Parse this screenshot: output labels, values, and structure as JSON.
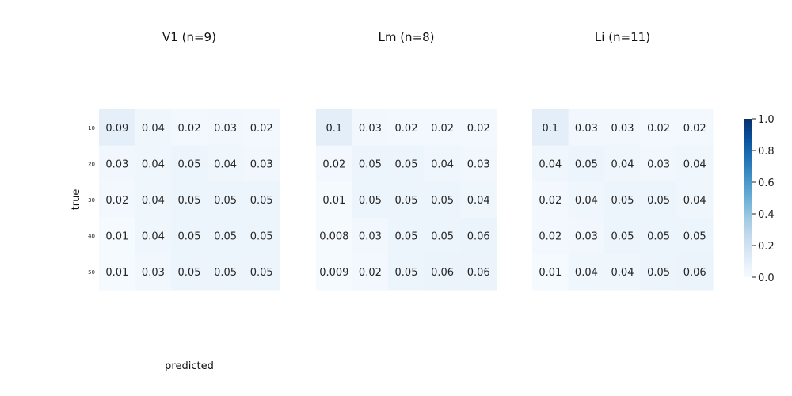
{
  "chart_data": [
    {
      "type": "heatmap",
      "title": "V1 (n=9)",
      "xlabel": "predicted",
      "ylabel": "true",
      "row_labels": [
        "10",
        "20",
        "30",
        "40",
        "50"
      ],
      "col_labels": [],
      "values": [
        [
          0.09,
          0.04,
          0.02,
          0.03,
          0.02
        ],
        [
          0.03,
          0.04,
          0.05,
          0.04,
          0.03
        ],
        [
          0.02,
          0.04,
          0.05,
          0.05,
          0.05
        ],
        [
          0.01,
          0.04,
          0.05,
          0.05,
          0.05
        ],
        [
          0.01,
          0.03,
          0.05,
          0.05,
          0.05
        ]
      ],
      "value_labels": [
        [
          "0.09",
          "0.04",
          "0.02",
          "0.03",
          "0.02"
        ],
        [
          "0.03",
          "0.04",
          "0.05",
          "0.04",
          "0.03"
        ],
        [
          "0.02",
          "0.04",
          "0.05",
          "0.05",
          "0.05"
        ],
        [
          "0.01",
          "0.04",
          "0.05",
          "0.05",
          "0.05"
        ],
        [
          "0.01",
          "0.03",
          "0.05",
          "0.05",
          "0.05"
        ]
      ]
    },
    {
      "type": "heatmap",
      "title": "Lm (n=8)",
      "xlabel": "",
      "ylabel": "",
      "row_labels": [],
      "col_labels": [],
      "values": [
        [
          0.1,
          0.03,
          0.02,
          0.02,
          0.02
        ],
        [
          0.02,
          0.05,
          0.05,
          0.04,
          0.03
        ],
        [
          0.01,
          0.05,
          0.05,
          0.05,
          0.04
        ],
        [
          0.008,
          0.03,
          0.05,
          0.05,
          0.06
        ],
        [
          0.009,
          0.02,
          0.05,
          0.06,
          0.06
        ]
      ],
      "value_labels": [
        [
          "0.1",
          "0.03",
          "0.02",
          "0.02",
          "0.02"
        ],
        [
          "0.02",
          "0.05",
          "0.05",
          "0.04",
          "0.03"
        ],
        [
          "0.01",
          "0.05",
          "0.05",
          "0.05",
          "0.04"
        ],
        [
          "0.008",
          "0.03",
          "0.05",
          "0.05",
          "0.06"
        ],
        [
          "0.009",
          "0.02",
          "0.05",
          "0.06",
          "0.06"
        ]
      ]
    },
    {
      "type": "heatmap",
      "title": "Li (n=11)",
      "xlabel": "",
      "ylabel": "",
      "row_labels": [],
      "col_labels": [],
      "values": [
        [
          0.1,
          0.03,
          0.03,
          0.02,
          0.02
        ],
        [
          0.04,
          0.05,
          0.04,
          0.03,
          0.04
        ],
        [
          0.02,
          0.04,
          0.05,
          0.05,
          0.04
        ],
        [
          0.02,
          0.03,
          0.05,
          0.05,
          0.05
        ],
        [
          0.01,
          0.04,
          0.04,
          0.05,
          0.06
        ]
      ],
      "value_labels": [
        [
          "0.1",
          "0.03",
          "0.03",
          "0.02",
          "0.02"
        ],
        [
          "0.04",
          "0.05",
          "0.04",
          "0.03",
          "0.04"
        ],
        [
          "0.02",
          "0.04",
          "0.05",
          "0.05",
          "0.04"
        ],
        [
          "0.02",
          "0.03",
          "0.05",
          "0.05",
          "0.05"
        ],
        [
          "0.01",
          "0.04",
          "0.04",
          "0.05",
          "0.06"
        ]
      ]
    }
  ],
  "colorbar": {
    "colormap": "Blues",
    "vmin": 0.0,
    "vmax": 1.0,
    "ticks": [
      "0.0",
      "0.2",
      "0.4",
      "0.6",
      "0.8",
      "1.0"
    ],
    "tick_values": [
      0.0,
      0.2,
      0.4,
      0.6,
      0.8,
      1.0
    ],
    "color_stops": [
      "#f7fbff",
      "#deebf7",
      "#c6dbef",
      "#9ecae1",
      "#6baed6",
      "#4292c6",
      "#2171b5",
      "#08519c",
      "#08306b"
    ]
  }
}
